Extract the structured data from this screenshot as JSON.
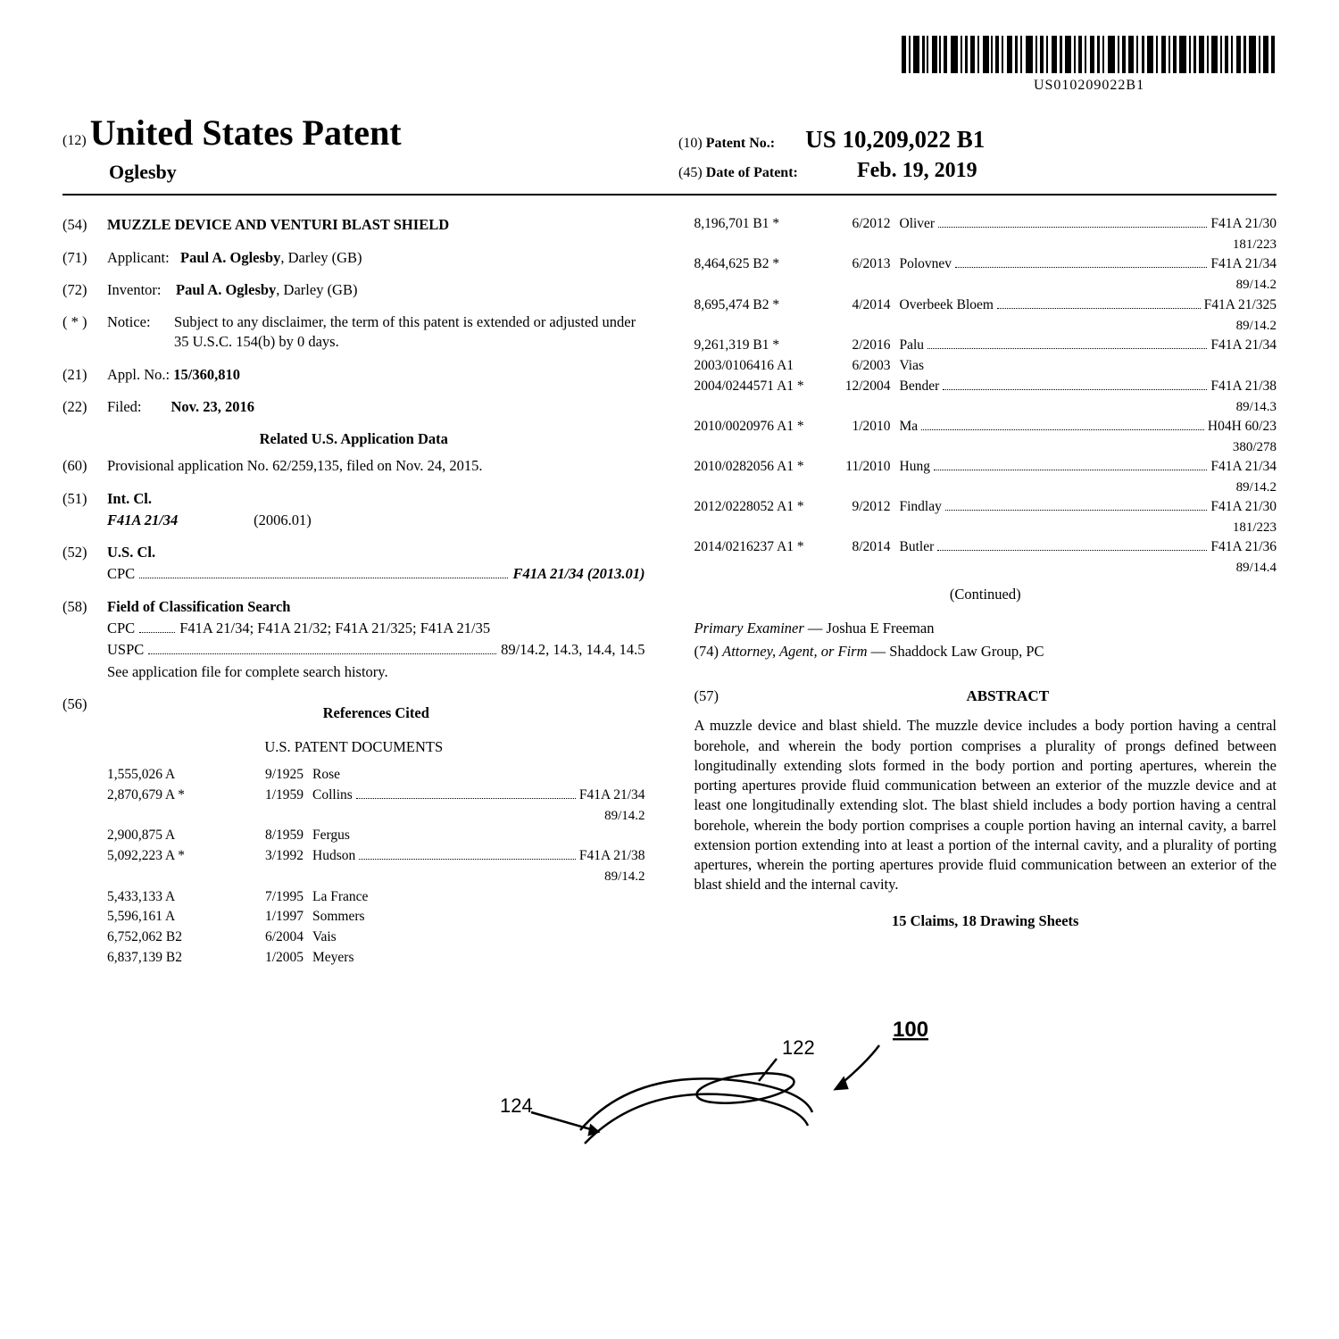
{
  "barcode_text": "US010209022B1",
  "doc_type_code": "(12)",
  "doc_type": "United States Patent",
  "inventor_header": "Oglesby",
  "patent_no_code": "(10)",
  "patent_no_label": "Patent No.:",
  "patent_no_value": "US 10,209,022 B1",
  "patent_date_code": "(45)",
  "patent_date_label": "Date of Patent:",
  "patent_date_value": "Feb. 19, 2019",
  "left": {
    "title_code": "(54)",
    "title_text": "MUZZLE DEVICE AND VENTURI BLAST SHIELD",
    "applicant_code": "(71)",
    "applicant_label": "Applicant:",
    "applicant_value": "Paul A. Oglesby",
    "applicant_loc": ", Darley (GB)",
    "inventor_code": "(72)",
    "inventor_label": "Inventor:",
    "inventor_value": "Paul A. Oglesby",
    "inventor_loc": ", Darley (GB)",
    "notice_code": "( * )",
    "notice_label": "Notice:",
    "notice_text": "Subject to any disclaimer, the term of this patent is extended or adjusted under 35 U.S.C. 154(b) by 0 days.",
    "applno_code": "(21)",
    "applno_label": "Appl. No.:",
    "applno_value": "15/360,810",
    "filed_code": "(22)",
    "filed_label": "Filed:",
    "filed_value": "Nov. 23, 2016",
    "related_heading": "Related U.S. Application Data",
    "prov_code": "(60)",
    "prov_text": "Provisional application No. 62/259,135, filed on Nov. 24, 2015.",
    "intcl_code": "(51)",
    "intcl_label": "Int. Cl.",
    "intcl_class": "F41A 21/34",
    "intcl_year": "(2006.01)",
    "uscl_code": "(52)",
    "uscl_label": "U.S. Cl.",
    "uscl_cpc_label": "CPC",
    "uscl_cpc_value": "F41A 21/34 (2013.01)",
    "field_code": "(58)",
    "field_label": "Field of Classification Search",
    "field_cpc_label": "CPC",
    "field_cpc_value": "F41A 21/34; F41A 21/32; F41A 21/325; F41A 21/35",
    "field_uspc_label": "USPC",
    "field_uspc_value": "89/14.2, 14.3, 14.4, 14.5",
    "field_note": "See application file for complete search history.",
    "ref_code": "(56)",
    "ref_heading": "References Cited",
    "ref_sub": "U.S. PATENT DOCUMENTS",
    "refs": [
      {
        "num": "1,555,026",
        "kind": "A",
        "date": "9/1925",
        "name": "Rose"
      },
      {
        "num": "2,870,679",
        "kind": "A  *",
        "date": "1/1959",
        "name": "Collins",
        "cls": "F41A 21/34",
        "sub": "89/14.2"
      },
      {
        "num": "2,900,875",
        "kind": "A",
        "date": "8/1959",
        "name": "Fergus"
      },
      {
        "num": "5,092,223",
        "kind": "A  *",
        "date": "3/1992",
        "name": "Hudson",
        "cls": "F41A 21/38",
        "sub": "89/14.2"
      },
      {
        "num": "5,433,133",
        "kind": "A",
        "date": "7/1995",
        "name": "La France"
      },
      {
        "num": "5,596,161",
        "kind": "A",
        "date": "1/1997",
        "name": "Sommers"
      },
      {
        "num": "6,752,062",
        "kind": "B2",
        "date": "6/2004",
        "name": "Vais"
      },
      {
        "num": "6,837,139",
        "kind": "B2",
        "date": "1/2005",
        "name": "Meyers"
      }
    ]
  },
  "right": {
    "refs": [
      {
        "num": "8,196,701",
        "kind": "B1 *",
        "date": "6/2012",
        "name": "Oliver",
        "cls": "F41A 21/30",
        "sub": "181/223"
      },
      {
        "num": "8,464,625",
        "kind": "B2 *",
        "date": "6/2013",
        "name": "Polovnev",
        "cls": "F41A 21/34",
        "sub": "89/14.2"
      },
      {
        "num": "8,695,474",
        "kind": "B2 *",
        "date": "4/2014",
        "name": "Overbeek Bloem",
        "cls": "F41A 21/325",
        "sub": "89/14.2"
      },
      {
        "num": "9,261,319",
        "kind": "B1 *",
        "date": "2/2016",
        "name": "Palu",
        "cls": "F41A 21/34"
      },
      {
        "num": "2003/0106416",
        "kind": "A1",
        "date": "6/2003",
        "name": "Vias"
      },
      {
        "num": "2004/0244571",
        "kind": "A1 *",
        "date": "12/2004",
        "name": "Bender",
        "cls": "F41A 21/38",
        "sub": "89/14.3"
      },
      {
        "num": "2010/0020976",
        "kind": "A1 *",
        "date": "1/2010",
        "name": "Ma",
        "cls": "H04H 60/23",
        "sub": "380/278"
      },
      {
        "num": "2010/0282056",
        "kind": "A1 *",
        "date": "11/2010",
        "name": "Hung",
        "cls": "F41A 21/34",
        "sub": "89/14.2"
      },
      {
        "num": "2012/0228052",
        "kind": "A1 *",
        "date": "9/2012",
        "name": "Findlay",
        "cls": "F41A 21/30",
        "sub": "181/223"
      },
      {
        "num": "2014/0216237",
        "kind": "A1 *",
        "date": "8/2014",
        "name": "Butler",
        "cls": "F41A 21/36",
        "sub": "89/14.4"
      }
    ],
    "continued": "(Continued)",
    "examiner_label": "Primary Examiner",
    "examiner_value": "Joshua E Freeman",
    "attorney_code": "(74)",
    "attorney_label": "Attorney, Agent, or Firm",
    "attorney_value": "Shaddock Law Group, PC",
    "abstract_code": "(57)",
    "abstract_heading": "ABSTRACT",
    "abstract_text": "A muzzle device and blast shield. The muzzle device includes a body portion having a central borehole, and wherein the body portion comprises a plurality of prongs defined between longitudinally extending slots formed in the body portion and porting apertures, wherein the porting apertures provide fluid communication between an exterior of the muzzle device and at least one longitudinally extending slot. The blast shield includes a body portion having a central borehole, wherein the body portion comprises a couple portion having an internal cavity, a barrel extension portion extending into at least a portion of the internal cavity, and a plurality of porting apertures, wherein the porting apertures provide fluid communication between an exterior of the blast shield and the internal cavity.",
    "claims_line": "15 Claims, 18 Drawing Sheets"
  },
  "drawing": {
    "label_100": "100",
    "label_122": "122",
    "label_124": "124"
  }
}
